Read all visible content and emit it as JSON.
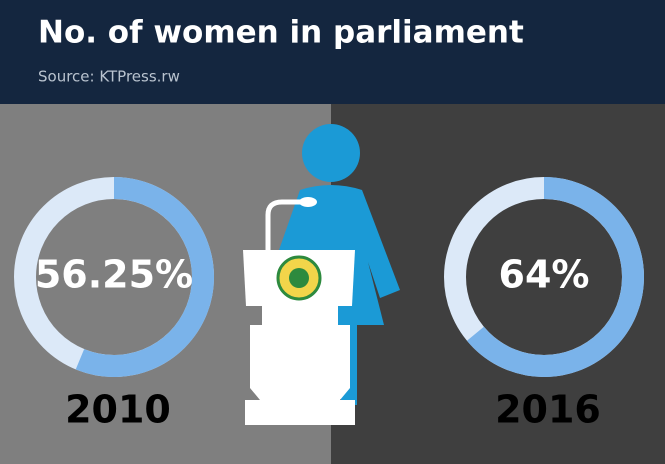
{
  "chart_data": {
    "type": "donut",
    "title": "No. of women in parliament",
    "subtitle": "Source: KTPress.rw",
    "categories": [
      "2010",
      "2016"
    ],
    "values": [
      56.25,
      64
    ],
    "value_labels": [
      "56.25%",
      "64%"
    ],
    "color": "#7ab3ea",
    "track_color": "#dce9f8"
  }
}
